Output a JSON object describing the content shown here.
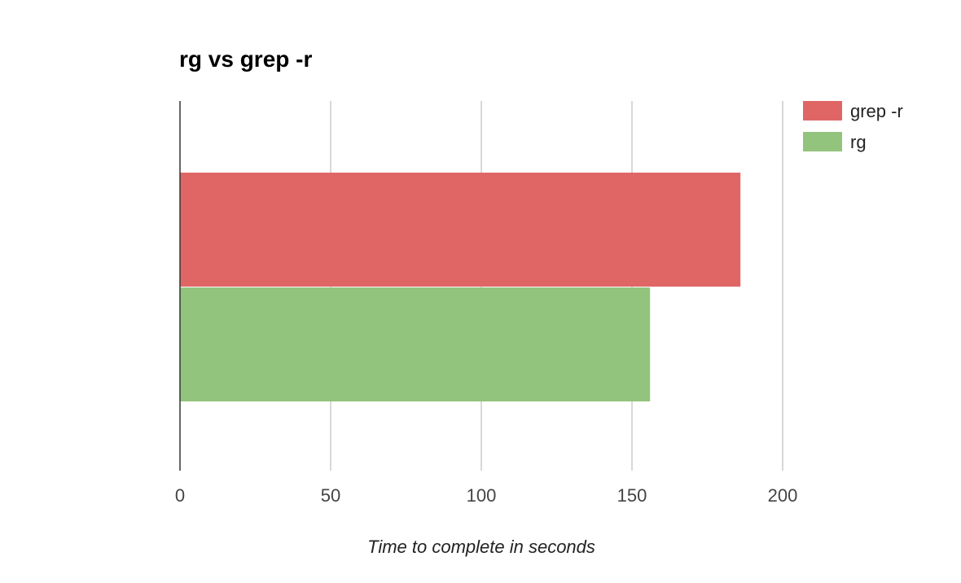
{
  "chart_data": {
    "type": "bar",
    "orientation": "horizontal",
    "title": "rg vs grep -r",
    "xlabel": "Time to complete in seconds",
    "ylabel": "",
    "categories": [
      ""
    ],
    "series": [
      {
        "name": "grep -r",
        "values": [
          186
        ],
        "color": "#e06666"
      },
      {
        "name": "rg",
        "values": [
          156
        ],
        "color": "#93c47d"
      }
    ],
    "xlim": [
      0,
      200
    ],
    "xticks": [
      0,
      50,
      100,
      150,
      200
    ],
    "grid": true,
    "legend": "top-right"
  }
}
